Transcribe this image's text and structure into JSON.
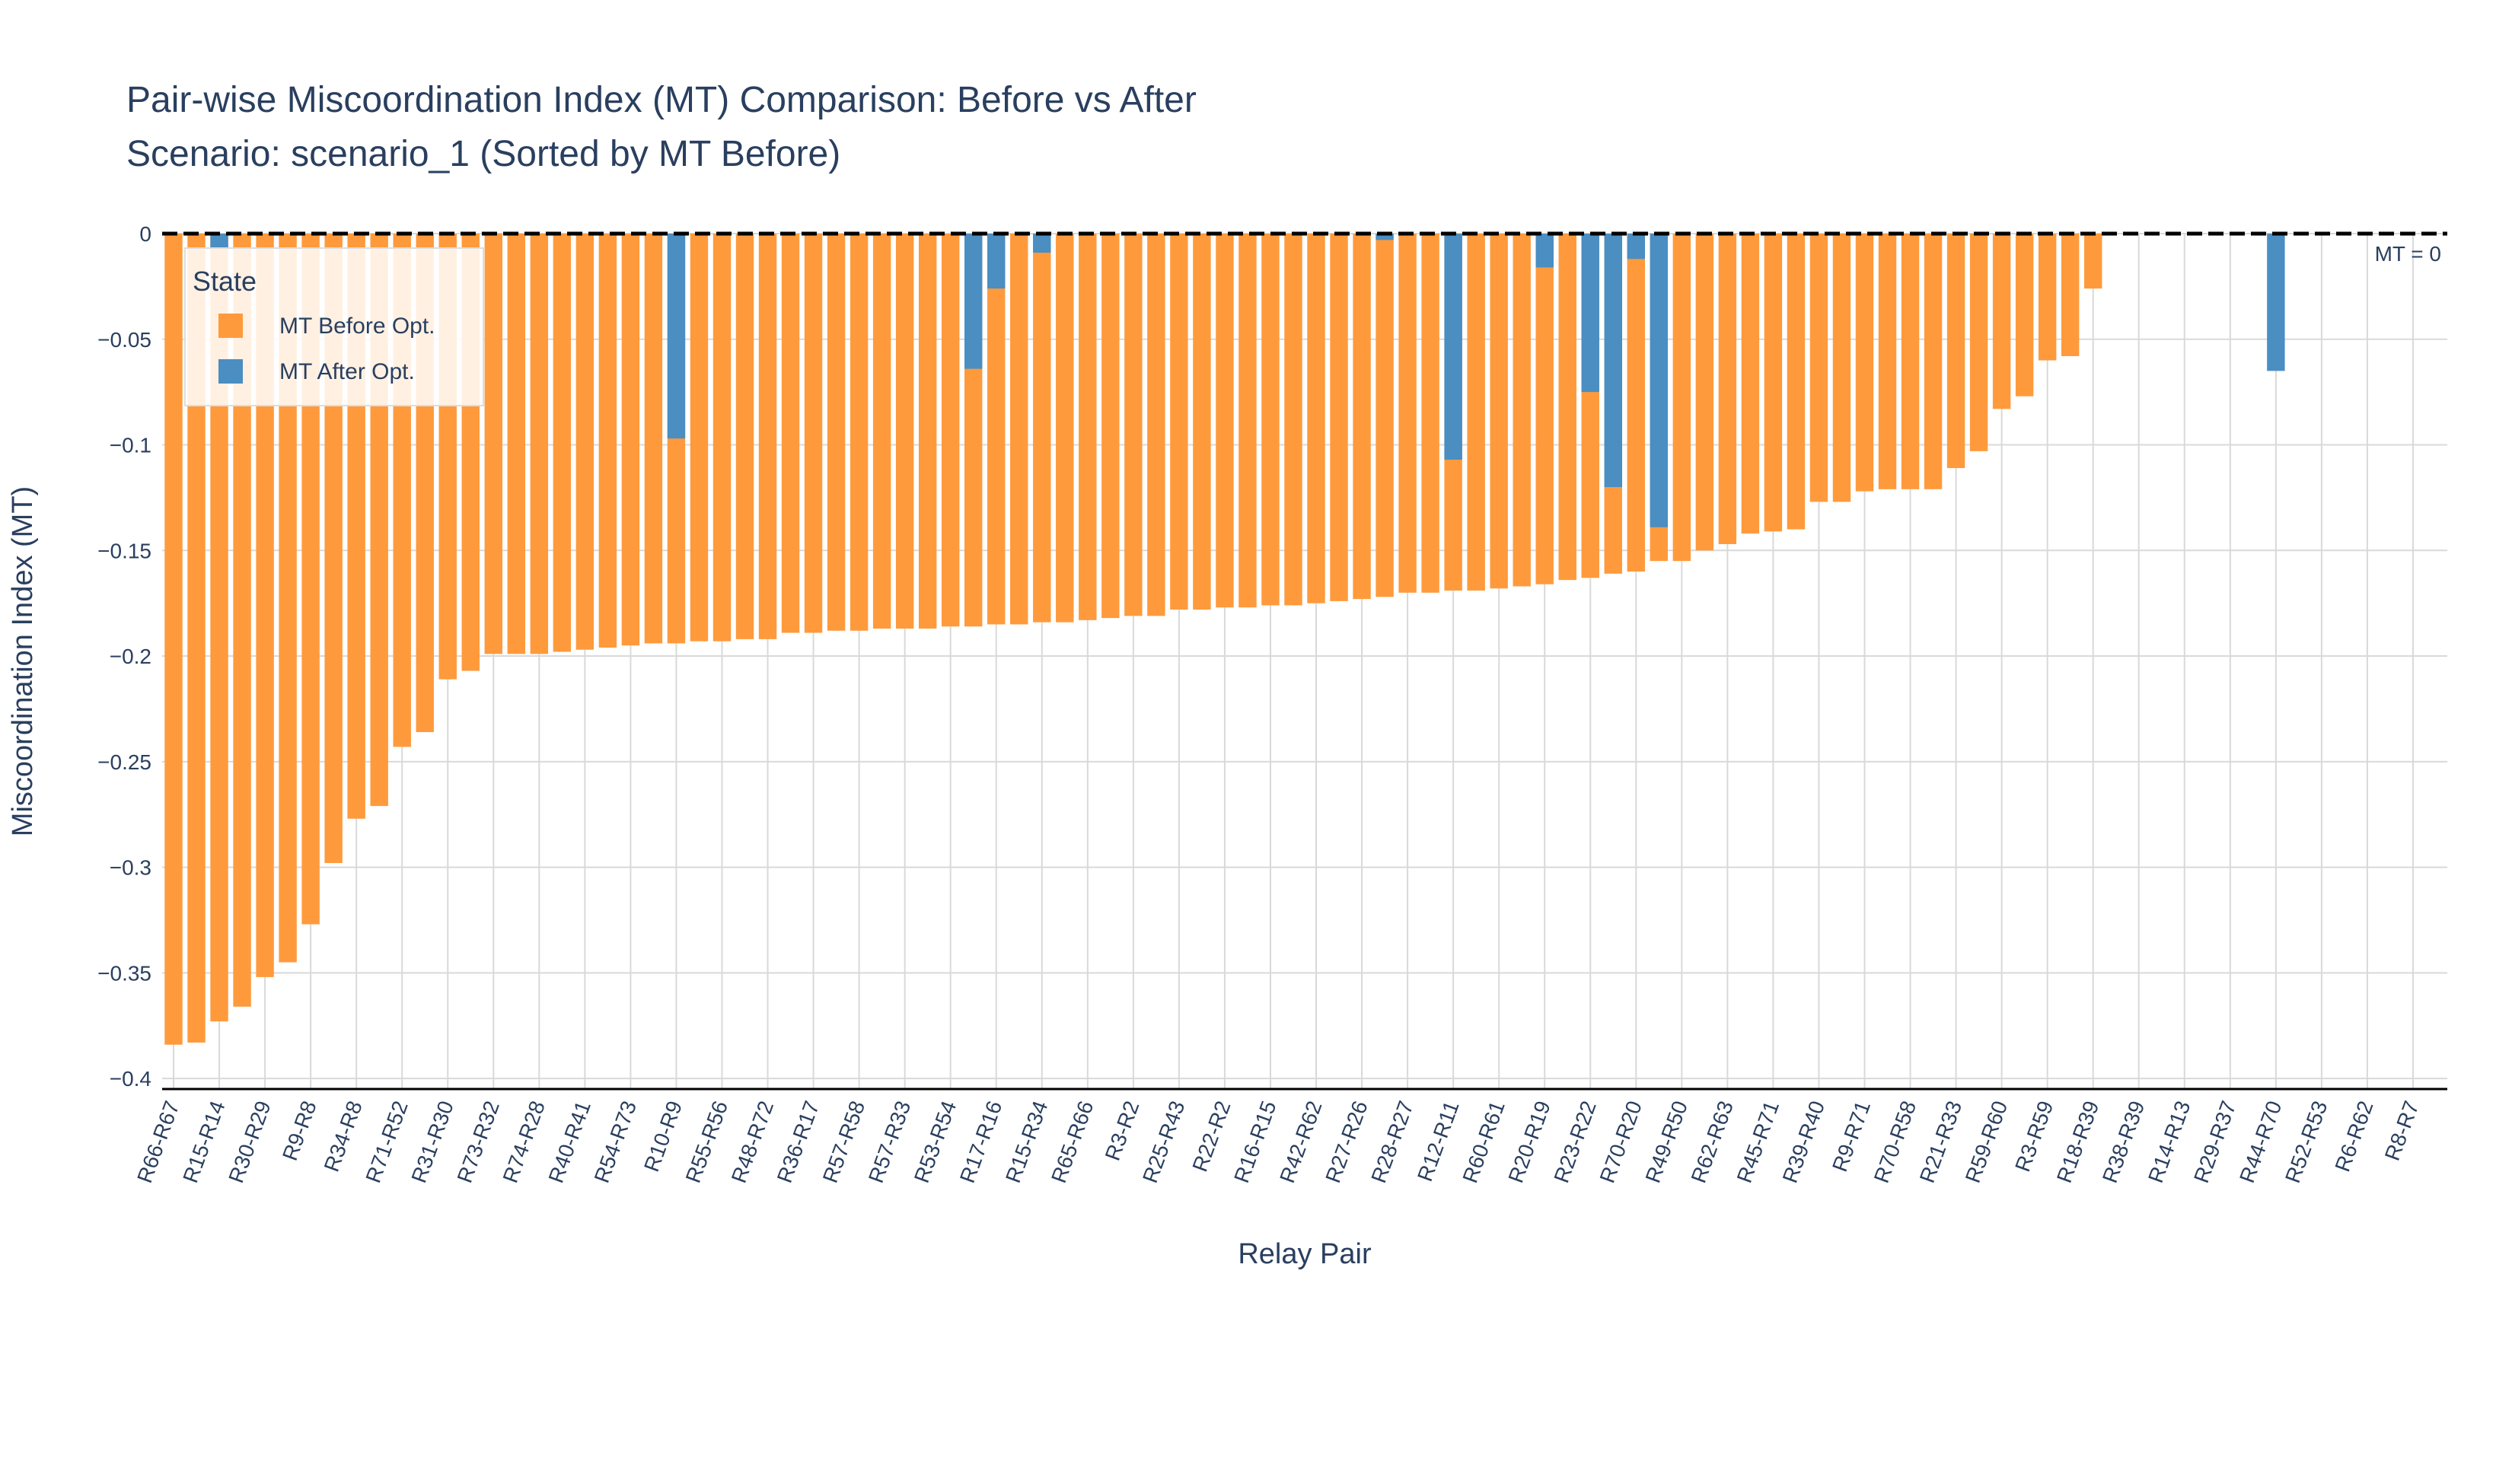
{
  "chart_data": {
    "type": "bar",
    "barmode": "overlay",
    "title": "Pair-wise Miscoordination Index (MT) Comparison: Before vs After",
    "subtitle": "Scenario: scenario_1 (Sorted by MT Before)",
    "x_label": "Relay Pair",
    "y_label": "Miscoordination Index (MT)",
    "legend_title": "State",
    "legend_position": "top-left",
    "grid": true,
    "ylim": [
      -0.405,
      0
    ],
    "yticks": [
      0,
      {
        "value": -0.05,
        "label": "−0.05"
      },
      {
        "value": -0.1,
        "label": "−0.1"
      },
      {
        "value": -0.15,
        "label": "−0.15"
      },
      {
        "value": -0.2,
        "label": "−0.2"
      },
      {
        "value": -0.25,
        "label": "−0.25"
      },
      {
        "value": -0.3,
        "label": "−0.3"
      },
      {
        "value": -0.35,
        "label": "−0.35"
      },
      {
        "value": -0.4,
        "label": "−0.4"
      }
    ],
    "reference_line": {
      "value": 0,
      "label": "MT = 0"
    },
    "categories": [
      "R66-R67",
      null,
      "R15-R14",
      null,
      "R30-R29",
      null,
      "R9-R8",
      null,
      "R34-R8",
      null,
      "R71-R52",
      null,
      "R31-R30",
      null,
      "R73-R32",
      null,
      "R74-R28",
      null,
      "R40-R41",
      null,
      "R54-R73",
      null,
      "R10-R9",
      null,
      "R55-R56",
      null,
      "R48-R72",
      null,
      "R36-R17",
      null,
      "R57-R58",
      null,
      "R57-R33",
      null,
      "R53-R54",
      null,
      "R17-R16",
      null,
      "R15-R34",
      null,
      "R65-R66",
      null,
      "R3-R2",
      null,
      "R25-R43",
      null,
      "R22-R2",
      null,
      "R16-R15",
      null,
      "R42-R62",
      null,
      "R27-R26",
      null,
      "R28-R27",
      null,
      "R12-R11",
      null,
      "R60-R61",
      null,
      "R20-R19",
      null,
      "R23-R22",
      null,
      "R70-R20",
      null,
      "R49-R50",
      null,
      "R62-R63",
      null,
      "R45-R71",
      null,
      "R39-R40",
      null,
      "R9-R71",
      null,
      "R70-R58",
      null,
      "R21-R33",
      null,
      "R59-R60",
      null,
      "R3-R59",
      null,
      "R18-R39",
      null,
      "R38-R39",
      null,
      "R14-R13",
      null,
      "R29-R37",
      null,
      "R44-R70",
      null,
      "R52-R53",
      null,
      "R6-R62",
      null,
      "R8-R7",
      null
    ],
    "series": [
      {
        "name": "MT Before Opt.",
        "color": "#ff9a3c",
        "values": [
          -0.384,
          -0.383,
          -0.373,
          -0.366,
          -0.352,
          -0.345,
          -0.327,
          -0.298,
          -0.277,
          -0.271,
          -0.243,
          -0.236,
          -0.211,
          -0.207,
          -0.199,
          -0.199,
          -0.199,
          -0.198,
          -0.197,
          -0.196,
          -0.195,
          -0.194,
          -0.194,
          -0.193,
          -0.193,
          -0.192,
          -0.192,
          -0.189,
          -0.189,
          -0.188,
          -0.188,
          -0.187,
          -0.187,
          -0.187,
          -0.186,
          -0.186,
          -0.185,
          -0.185,
          -0.184,
          -0.184,
          -0.183,
          -0.182,
          -0.181,
          -0.181,
          -0.178,
          -0.178,
          -0.177,
          -0.177,
          -0.176,
          -0.176,
          -0.175,
          -0.174,
          -0.173,
          -0.172,
          -0.17,
          -0.17,
          -0.169,
          -0.169,
          -0.168,
          -0.167,
          -0.166,
          -0.164,
          -0.163,
          -0.161,
          -0.16,
          -0.155,
          -0.155,
          -0.15,
          -0.147,
          -0.142,
          -0.141,
          -0.14,
          -0.127,
          -0.127,
          -0.122,
          -0.121,
          -0.121,
          -0.121,
          -0.111,
          -0.103,
          -0.083,
          -0.077,
          -0.06,
          -0.058,
          -0.026,
          0,
          0,
          0,
          0,
          0,
          0,
          0,
          0,
          0,
          0,
          0,
          0,
          0,
          0,
          0
        ]
      },
      {
        "name": "MT After Opt.",
        "color": "#4a8ec2",
        "values": [
          0,
          0,
          -0.007,
          0,
          0,
          0,
          0,
          0,
          0,
          0,
          0,
          0,
          0,
          0,
          0,
          0,
          0,
          0,
          0,
          0,
          0,
          0,
          -0.097,
          0,
          0,
          0,
          0,
          0,
          0,
          0,
          0,
          0,
          0,
          0,
          0,
          -0.064,
          -0.026,
          0,
          -0.009,
          0,
          0,
          0,
          0,
          0,
          0,
          0,
          0,
          0,
          0,
          0,
          0,
          0,
          0,
          -0.003,
          0,
          0,
          -0.107,
          0,
          0,
          0,
          -0.016,
          0,
          -0.075,
          -0.12,
          -0.012,
          -0.139,
          0,
          0,
          0,
          0,
          0,
          0,
          0,
          0,
          0,
          0,
          0,
          0,
          0,
          0,
          0,
          0,
          0,
          0,
          0,
          0,
          0,
          0,
          0,
          0,
          0,
          0,
          -0.065,
          0,
          0,
          0,
          0,
          0,
          0,
          0
        ]
      }
    ]
  }
}
